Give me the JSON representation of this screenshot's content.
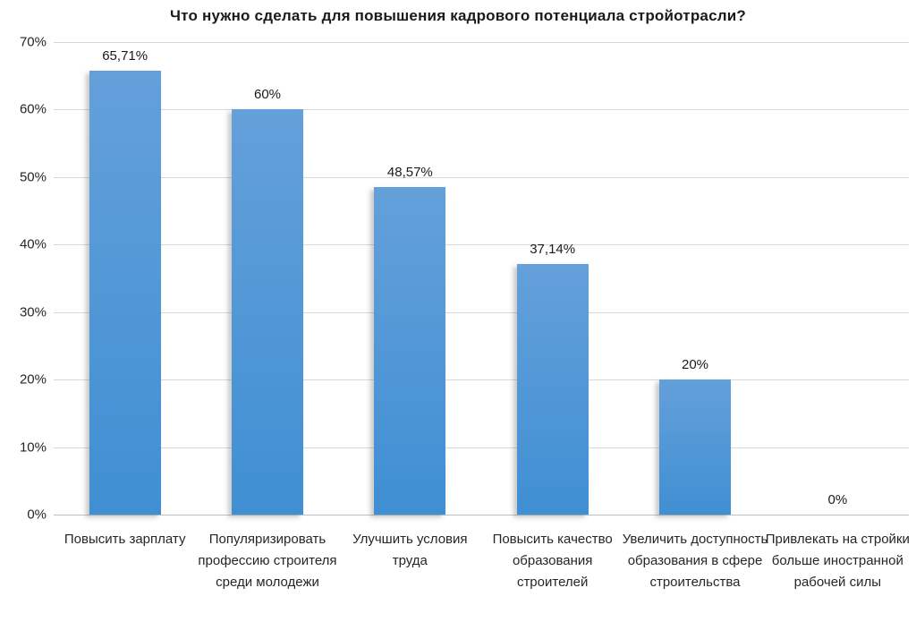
{
  "chart_data": {
    "type": "bar",
    "title": "Что нужно сделать для повышения кадрового потенциала стройотрасли?",
    "categories": [
      "Повысить зарплату",
      "Популяризировать профессию строителя среди молодежи",
      "Улучшить условия труда",
      "Повысить качество образования строителей",
      "Увеличить доступность образования в сфере строительства",
      "Привлекать на стройки больше иностранной рабочей силы"
    ],
    "values": [
      65.71,
      60,
      48.57,
      37.14,
      20,
      0
    ],
    "value_labels": [
      "65,71%",
      "60%",
      "48,57%",
      "37,14%",
      "20%",
      "0%"
    ],
    "xlabel": "",
    "ylabel": "",
    "ylim": [
      0,
      70
    ],
    "ytick_step": 10,
    "ytick_labels": [
      "0%",
      "10%",
      "20%",
      "30%",
      "40%",
      "50%",
      "60%",
      "70%"
    ],
    "grid": true,
    "legend": "none",
    "colors": {
      "bar_top": "#64A0DA",
      "bar_bottom": "#3F8FD3",
      "gridline": "#d8d8d8",
      "axis_line": "#bfbfbf",
      "text": "#1a1a1a",
      "background": "#ffffff"
    }
  }
}
